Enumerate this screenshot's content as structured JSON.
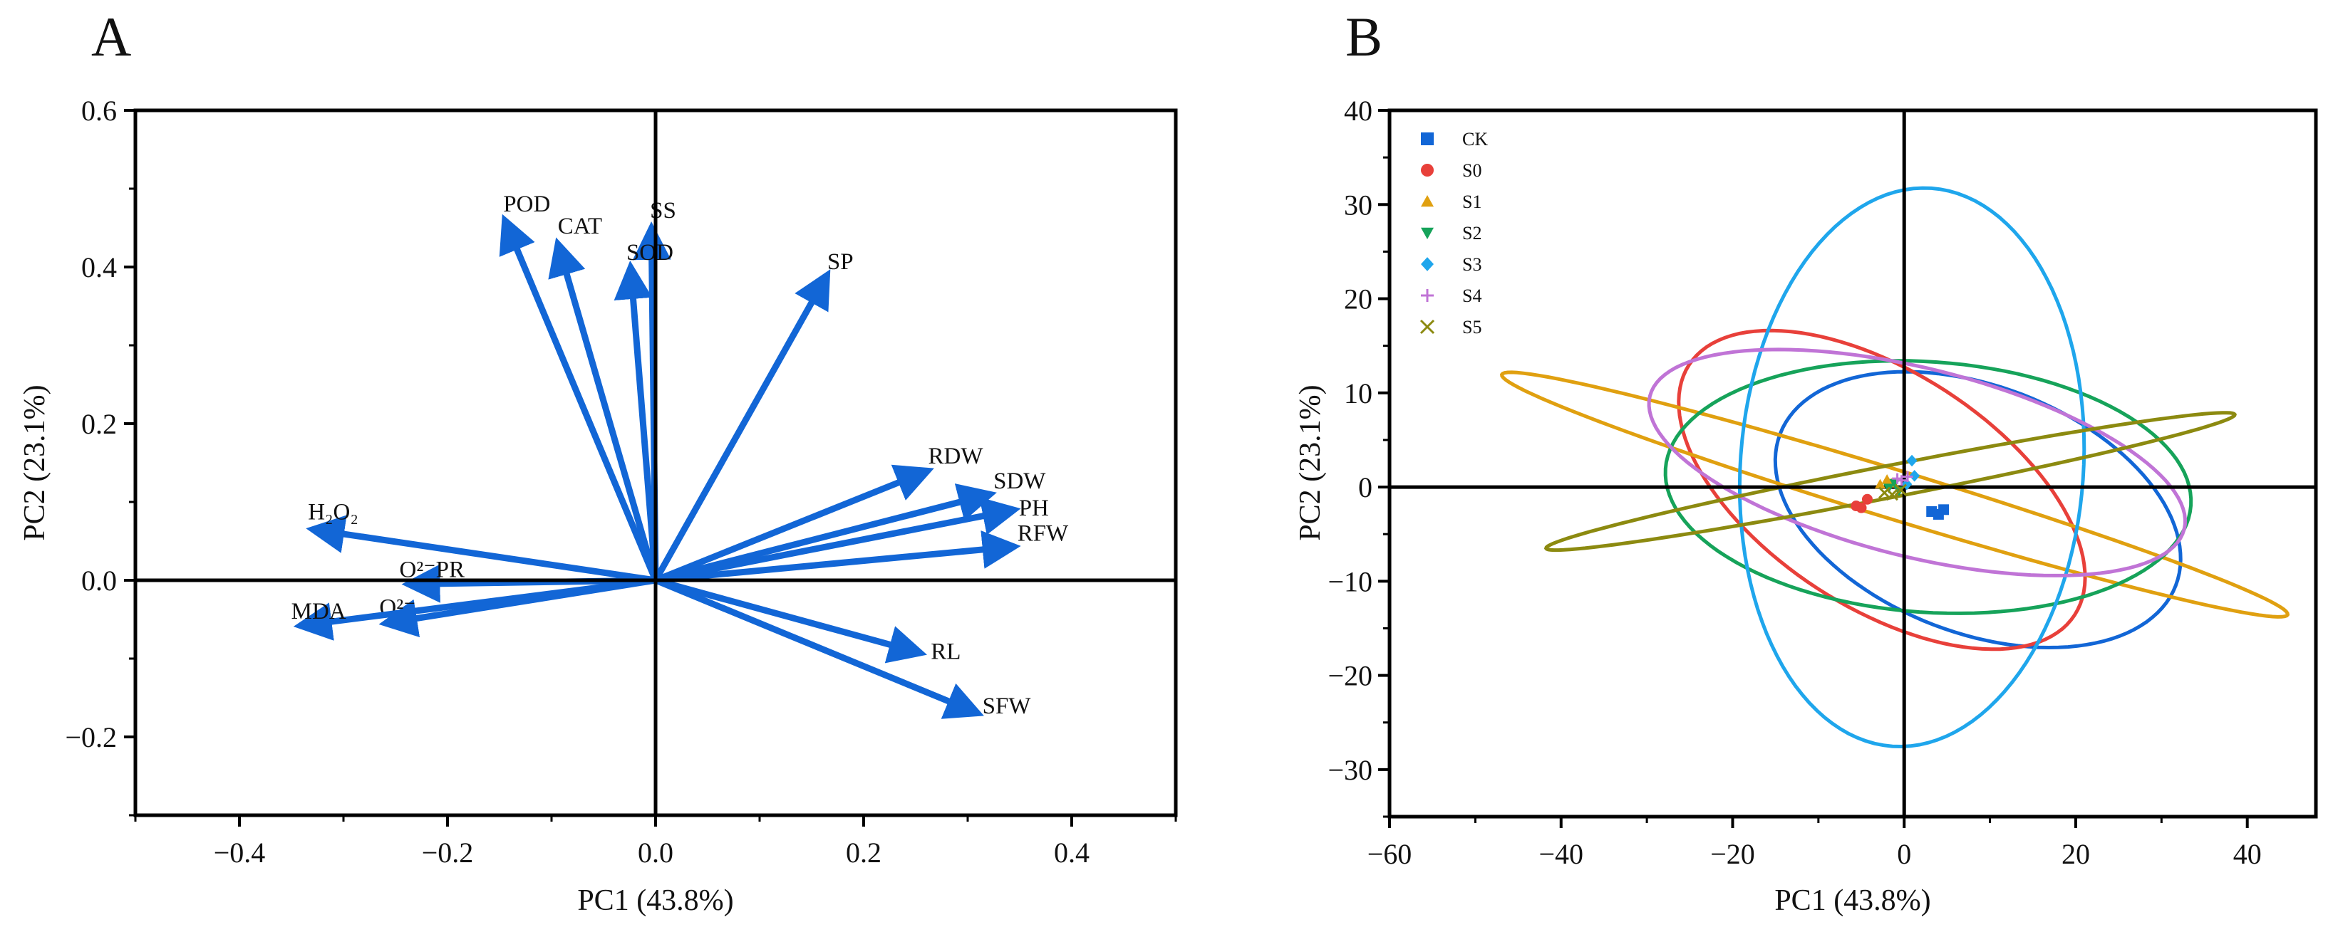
{
  "chart_data": [
    {
      "type": "biplot",
      "panel_label": "A",
      "xlabel": "PC1 (43.8%)",
      "ylabel": "PC2 (23.1%)",
      "xlim": [
        -0.5,
        0.5
      ],
      "ylim": [
        -0.3,
        0.6
      ],
      "xticks": [
        -0.4,
        -0.2,
        0.0,
        0.2,
        0.4
      ],
      "xtick_labels": [
        "−0.4",
        "−0.2",
        "0.0",
        "0.2",
        "0.4"
      ],
      "yticks": [
        -0.2,
        0.0,
        0.2,
        0.4,
        0.6
      ],
      "ytick_labels": [
        "−0.2",
        "0.0",
        "0.2",
        "0.4",
        "0.6"
      ],
      "arrow_color": "#1266d6",
      "loadings": [
        {
          "label": "POD",
          "x": -0.145,
          "y": 0.46
        },
        {
          "label": "CAT",
          "x": -0.094,
          "y": 0.43
        },
        {
          "label": "SS",
          "x": -0.004,
          "y": 0.45
        },
        {
          "label": "SOD",
          "x": -0.024,
          "y": 0.4
        },
        {
          "label": "SP",
          "x": 0.165,
          "y": 0.39
        },
        {
          "label": "RDW",
          "x": 0.262,
          "y": 0.14
        },
        {
          "label": "SDW",
          "x": 0.322,
          "y": 0.11
        },
        {
          "label": "PH",
          "x": 0.345,
          "y": 0.09
        },
        {
          "label": "RFW",
          "x": 0.345,
          "y": 0.043
        },
        {
          "label": "RL",
          "x": 0.255,
          "y": -0.093
        },
        {
          "label": "SFW",
          "x": 0.31,
          "y": -0.17
        },
        {
          "label": "H₂O₂",
          "x": -0.33,
          "y": 0.065
        },
        {
          "label": "O²⁻PR",
          "x": -0.238,
          "y": -0.005
        },
        {
          "label": "O²⁻",
          "x": -0.26,
          "y": -0.055
        },
        {
          "label": "MDA",
          "x": -0.342,
          "y": -0.058
        }
      ]
    },
    {
      "type": "scatter",
      "panel_label": "B",
      "xlabel": "PC1 (43.8%)",
      "ylabel": "PC2 (23.1%)",
      "xlim": [
        -60,
        48
      ],
      "ylim": [
        -35,
        40
      ],
      "xticks": [
        -60,
        -40,
        -20,
        0,
        20,
        40
      ],
      "xtick_labels": [
        "−60",
        "−40",
        "−20",
        "0",
        "20",
        "40"
      ],
      "yticks": [
        -30,
        -20,
        -10,
        0,
        10,
        20,
        30,
        40
      ],
      "ytick_labels": [
        "−30",
        "−20",
        "−10",
        "0",
        "10",
        "20",
        "30",
        "40"
      ],
      "series": [
        {
          "name": "CK",
          "marker": "square",
          "color": "#1266d6",
          "points": [
            [
              3.2,
              -2.6
            ],
            [
              4.6,
              -2.4
            ],
            [
              4.0,
              -2.9
            ]
          ],
          "ellipse": {
            "cx": 8.6,
            "cy": -2.4,
            "rx": 24.7,
            "ry": 13.1,
            "angle": -21
          }
        },
        {
          "name": "S0",
          "marker": "circle",
          "color": "#e8403a",
          "points": [
            [
              -5.6,
              -2.0
            ],
            [
              -4.3,
              -1.3
            ],
            [
              -5.0,
              -2.2
            ]
          ],
          "ellipse": {
            "cx": -2.6,
            "cy": -0.3,
            "rx": 26.8,
            "ry": 12.5,
            "angle": -33
          }
        },
        {
          "name": "S1",
          "marker": "triangle",
          "color": "#e0a010",
          "points": [
            [
              -2.8,
              0.3
            ],
            [
              -2.0,
              0.8
            ],
            [
              -1.5,
              0.4
            ]
          ],
          "ellipse": {
            "cx": -1.1,
            "cy": -0.8,
            "rx": 47.9,
            "ry": 2.6,
            "angle": -17
          }
        },
        {
          "name": "S2",
          "marker": "triangle-down",
          "color": "#16a35a",
          "points": [
            [
              -1.8,
              -0.1
            ],
            [
              -1.1,
              0.4
            ],
            [
              -0.6,
              -0.4
            ]
          ],
          "ellipse": {
            "cx": 2.8,
            "cy": 0.0,
            "rx": 30.7,
            "ry": 13.3,
            "angle": -4
          }
        },
        {
          "name": "S3",
          "marker": "diamond",
          "color": "#1fa6ec",
          "points": [
            [
              0.9,
              2.8
            ],
            [
              1.2,
              1.2
            ],
            [
              0.3,
              0.3
            ]
          ],
          "ellipse": {
            "cx": 0.9,
            "cy": 2.1,
            "rx": 20.0,
            "ry": 29.7,
            "angle": -4
          }
        },
        {
          "name": "S4",
          "marker": "plus",
          "color": "#c074d6",
          "points": [
            [
              -0.8,
              0.9
            ],
            [
              -0.3,
              0.7
            ],
            [
              0.4,
              1.1
            ]
          ],
          "ellipse": {
            "cx": 1.5,
            "cy": 2.6,
            "rx": 32.1,
            "ry": 10.0,
            "angle": -14
          }
        },
        {
          "name": "S5",
          "marker": "x",
          "color": "#8c8a10",
          "points": [
            [
              -2.3,
              -0.6
            ],
            [
              -1.4,
              -0.8
            ],
            [
              -0.4,
              -0.3
            ]
          ],
          "ellipse": {
            "cx": -1.6,
            "cy": 0.6,
            "rx": 40.9,
            "ry": 1.7,
            "angle": 11
          }
        }
      ]
    }
  ]
}
